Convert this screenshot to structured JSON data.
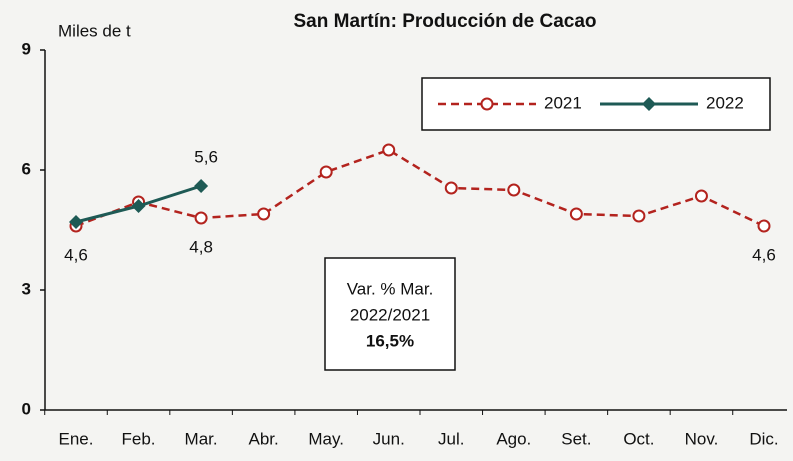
{
  "chart_data": {
    "type": "line",
    "title": "San Martín: Producción de Cacao",
    "y_label": "Miles de t",
    "categories": [
      "Ene.",
      "Feb.",
      "Mar.",
      "Abr.",
      "May.",
      "Jun.",
      "Jul.",
      "Ago.",
      "Set.",
      "Oct.",
      "Nov.",
      "Dic."
    ],
    "series": [
      {
        "name": "2021",
        "color": "#b3231e",
        "values": [
          4.6,
          5.2,
          4.8,
          4.9,
          5.95,
          6.5,
          5.55,
          5.5,
          4.9,
          4.85,
          5.35,
          4.6
        ],
        "value_labels": [
          "4,6",
          null,
          "4,8",
          null,
          null,
          null,
          null,
          null,
          null,
          null,
          null,
          "4,6"
        ]
      },
      {
        "name": "2022",
        "color": "#1e5a55",
        "values": [
          4.7,
          5.1,
          5.6,
          null,
          null,
          null,
          null,
          null,
          null,
          null,
          null,
          null
        ],
        "value_labels": [
          null,
          null,
          "5,6",
          null,
          null,
          null,
          null,
          null,
          null,
          null,
          null,
          null
        ]
      }
    ],
    "ylim": [
      0,
      9
    ],
    "yticks": [
      0,
      3,
      6,
      9
    ],
    "annotation": {
      "lines": [
        "Var. % Mar.",
        "2022/2021",
        "16,5%"
      ]
    }
  }
}
